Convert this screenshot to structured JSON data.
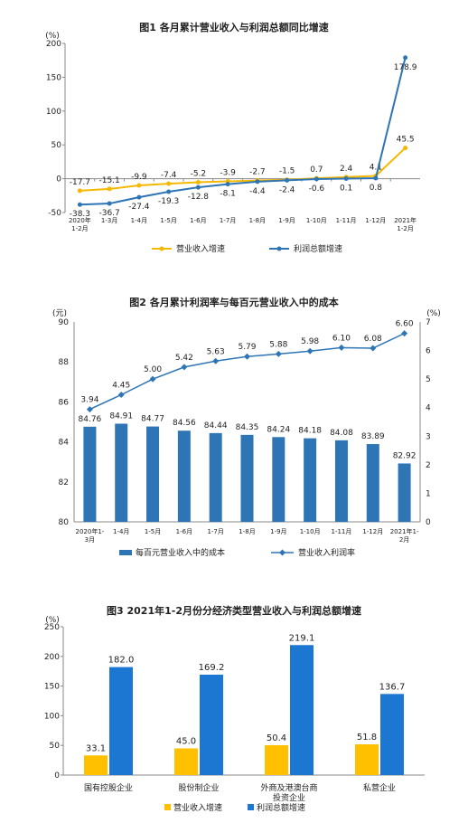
{
  "chart_data": [
    {
      "type": "line",
      "title": "图1 各月累计营业收入与利润总额同比增速",
      "yunit": "(%)",
      "ylim": [
        -50,
        200
      ],
      "yticks": [
        "-50",
        "0",
        "50",
        "100",
        "150",
        "200"
      ],
      "categories": [
        "2020年\n1-2月",
        "1-3月",
        "1-4月",
        "1-5月",
        "1-6月",
        "1-7月",
        "1-8月",
        "1-9月",
        "1-10月",
        "1-11月",
        "1-12月",
        "2021年\n1-2月"
      ],
      "series": [
        {
          "name": "营业收入增速",
          "color": "#F5B800",
          "values": [
            -17.7,
            -15.1,
            -9.9,
            -7.4,
            -5.2,
            -3.9,
            -2.7,
            -1.5,
            0.7,
            2.4,
            4.1,
            45.5
          ]
        },
        {
          "name": "利润总额增速",
          "color": "#2E75B6",
          "values": [
            -38.3,
            -36.7,
            -27.4,
            -19.3,
            -12.8,
            -8.1,
            -4.4,
            -2.4,
            -0.6,
            0.1,
            0.8,
            178.9
          ]
        }
      ],
      "legend": "bottom"
    },
    {
      "type": "bar",
      "title": "图2 各月累计利润率与每百元营业收入中的成本",
      "yunit_left": "(元)",
      "yunit_right": "(%)",
      "ylim_left": [
        80,
        90
      ],
      "yticks_left": [
        "80",
        "82",
        "84",
        "86",
        "88",
        "90"
      ],
      "ylim_right": [
        0,
        7
      ],
      "yticks_right": [
        "0",
        "1",
        "2",
        "3",
        "4",
        "5",
        "6",
        "7"
      ],
      "categories": [
        "2020年1-\n3月",
        "1-4月",
        "1-5月",
        "1-6月",
        "1-7月",
        "1-8月",
        "1-9月",
        "1-10月",
        "1-11月",
        "1-12月",
        "2021年1-\n2月"
      ],
      "bar_series": {
        "name": "每百元营业收入中的成本",
        "color": "#2E75B6",
        "values": [
          84.76,
          84.91,
          84.77,
          84.56,
          84.44,
          84.35,
          84.24,
          84.18,
          84.08,
          83.89,
          82.92
        ],
        "labels": [
          "84.76",
          "84.91",
          "84.77",
          "84.56",
          "84.44",
          "84.35",
          "84.24",
          "84.18",
          "84.08",
          "83.89",
          "82.92"
        ]
      },
      "line_series": {
        "name": "营业收入利润率",
        "color": "#2E75B6",
        "values": [
          3.94,
          4.45,
          5.0,
          5.42,
          5.63,
          5.79,
          5.88,
          5.98,
          6.1,
          6.08,
          6.6
        ],
        "labels": [
          "3.94",
          "4.45",
          "5.00",
          "5.42",
          "5.63",
          "5.79",
          "5.88",
          "5.98",
          "6.10",
          "6.08",
          "6.60"
        ]
      },
      "legend": "bottom"
    },
    {
      "type": "bar",
      "title": "图3 2021年1-2月份分经济类型营业收入与利润总额增速",
      "yunit": "(%)",
      "ylim": [
        0,
        250
      ],
      "yticks": [
        "0",
        "50",
        "100",
        "150",
        "200",
        "250"
      ],
      "categories": [
        "国有控股企业",
        "股份制企业",
        "外商及港澳台商\n投资企业",
        "私营企业"
      ],
      "series": [
        {
          "name": "营业收入增速",
          "color": "#FFC000",
          "values": [
            33.1,
            45.0,
            50.4,
            51.8
          ],
          "labels": [
            "33.1",
            "45.0",
            "50.4",
            "51.8"
          ]
        },
        {
          "name": "利润总额增速",
          "color": "#1B77D2",
          "values": [
            182.0,
            169.2,
            219.1,
            136.7
          ],
          "labels": [
            "182.0",
            "169.2",
            "219.1",
            "136.7"
          ]
        }
      ],
      "legend": "bottom"
    }
  ]
}
